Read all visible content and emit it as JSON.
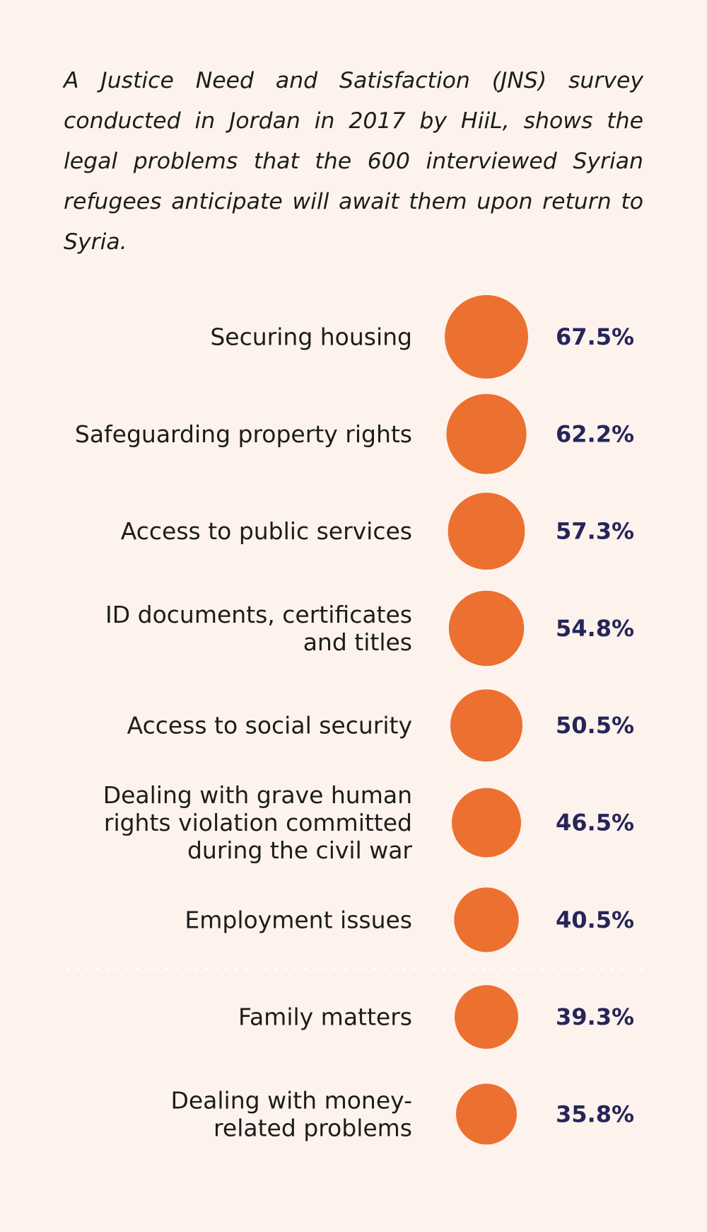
{
  "intro_text": "A Justice Need and Satisfaction (JNS) survey conducted in Jordan in 2017 by HiiL, shows the legal problems that the 600 interviewed Syrian refugees anticipate will await them upon return to Syria.",
  "colors": {
    "background": "#fdf3ec",
    "dot": "#ec7030",
    "value_text": "#26255a",
    "label_text": "#1c1c1c"
  },
  "chart_data": {
    "type": "bubble",
    "unit": "%",
    "categories": [
      [
        "Securing housing"
      ],
      [
        "Safeguarding property rights"
      ],
      [
        "Access to public services"
      ],
      [
        "ID documents, certificates",
        "and titles"
      ],
      [
        "Access to social security"
      ],
      [
        "Dealing with grave human",
        "rights violation committed",
        "during the civil war"
      ],
      [
        "Employment issues"
      ],
      [
        "Family matters"
      ],
      [
        "Dealing with money-",
        "related problems"
      ]
    ],
    "values": [
      67.5,
      62.2,
      57.3,
      54.8,
      50.5,
      46.5,
      40.5,
      39.3,
      35.8
    ],
    "value_labels": [
      "67.5%",
      "62.2%",
      "57.3%",
      "54.8%",
      "50.5%",
      "46.5%",
      "40.5%",
      "39.3%",
      "35.8%"
    ],
    "divider_after_index": 6
  }
}
